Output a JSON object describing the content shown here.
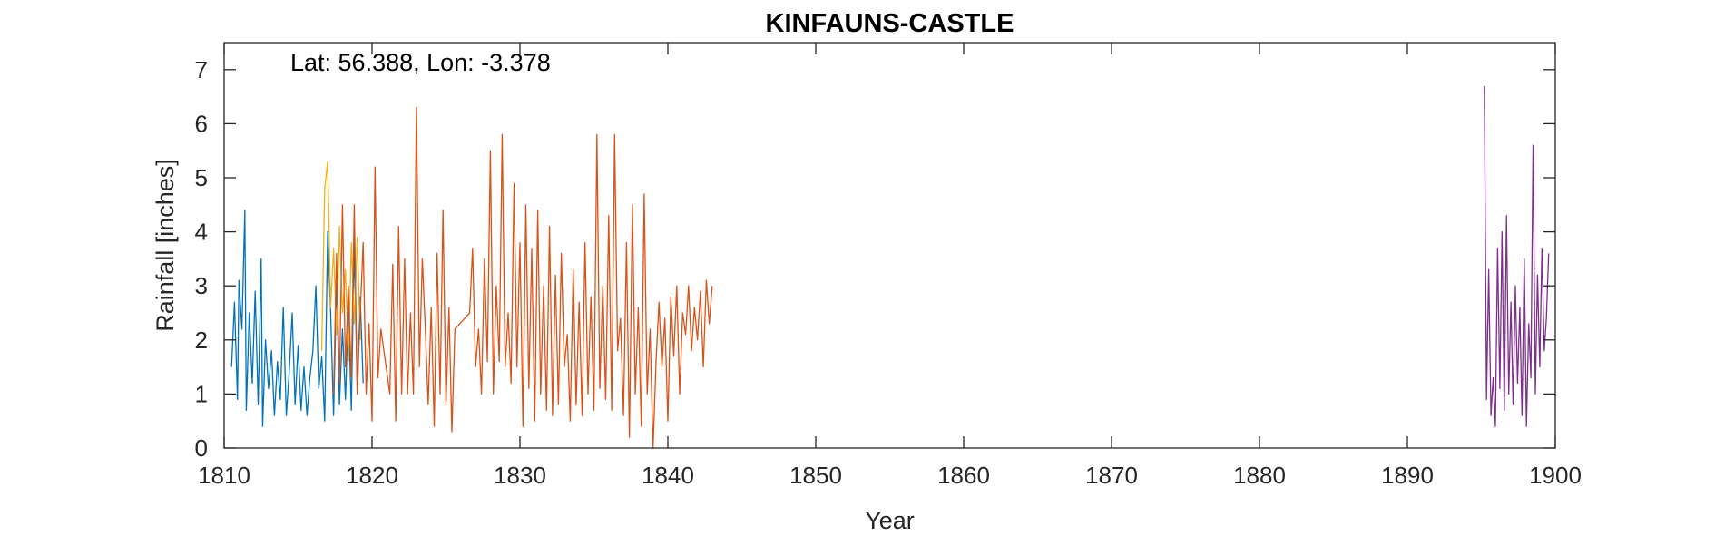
{
  "chart_data": {
    "type": "line",
    "title": "KINFAUNS-CASTLE",
    "xlabel": "Year",
    "ylabel": "Rainfall [inches]",
    "annotation": "Lat: 56.388, Lon: -3.378",
    "xlim": [
      1810,
      1900
    ],
    "ylim": [
      0,
      7.5
    ],
    "xticks": [
      1810,
      1820,
      1830,
      1840,
      1850,
      1860,
      1870,
      1880,
      1890,
      1900
    ],
    "yticks": [
      0,
      1,
      2,
      3,
      4,
      5,
      6,
      7
    ],
    "grid": false,
    "legend": "none",
    "series": [
      {
        "color": "#0072BD",
        "x": [
          1810.5,
          1810.7,
          1810.9,
          1811.0,
          1811.2,
          1811.4,
          1811.5,
          1811.7,
          1811.9,
          1812.1,
          1812.3,
          1812.5,
          1812.6,
          1812.8,
          1813.0,
          1813.2,
          1813.4,
          1813.6,
          1813.8,
          1814.0,
          1814.2,
          1814.4,
          1814.6,
          1814.8,
          1815.0,
          1815.2,
          1815.4,
          1815.6,
          1815.8,
          1816.0,
          1816.2,
          1816.4,
          1816.6,
          1816.8,
          1817.0,
          1817.2,
          1817.4,
          1817.6,
          1817.8,
          1818.0,
          1818.2,
          1818.4,
          1818.6,
          1818.8,
          1819.0,
          1819.2,
          1819.4
        ],
        "y": [
          1.5,
          2.7,
          0.9,
          3.1,
          2.2,
          4.4,
          0.7,
          2.5,
          1.2,
          2.9,
          0.8,
          3.5,
          0.4,
          2.0,
          1.1,
          1.8,
          0.6,
          1.6,
          0.9,
          2.6,
          0.6,
          1.4,
          2.5,
          0.8,
          1.9,
          0.7,
          1.5,
          0.6,
          1.3,
          1.8,
          3.0,
          1.1,
          1.7,
          0.5,
          4.0,
          2.5,
          0.6,
          3.1,
          0.8,
          2.2,
          0.9,
          2.6,
          0.7,
          3.8,
          1.0,
          2.8,
          1.2
        ]
      },
      {
        "color": "#EDB120",
        "x": [
          1816.6,
          1816.8,
          1817.0,
          1817.2,
          1817.4,
          1817.6,
          1817.8,
          1818.0,
          1818.2,
          1818.4,
          1818.6,
          1818.8,
          1819.0,
          1819.2
        ],
        "y": [
          1.8,
          4.8,
          5.3,
          2.6,
          3.7,
          2.1,
          4.1,
          2.5,
          3.3,
          1.6,
          3.8,
          2.3,
          3.9,
          2.0
        ]
      },
      {
        "color": "#D95319",
        "x": [
          1817.4,
          1817.6,
          1817.8,
          1818.0,
          1818.2,
          1818.4,
          1818.6,
          1818.8,
          1819.0,
          1819.2,
          1819.4,
          1819.6,
          1819.8,
          1820.0,
          1820.2,
          1820.4,
          1820.6,
          1821.2,
          1821.4,
          1821.6,
          1821.8,
          1822.0,
          1822.2,
          1822.4,
          1822.6,
          1822.8,
          1823.0,
          1823.2,
          1823.4,
          1823.6,
          1823.8,
          1824.0,
          1824.2,
          1824.4,
          1824.6,
          1824.8,
          1825.0,
          1825.2,
          1825.4,
          1825.6,
          1826.6,
          1826.8,
          1827.0,
          1827.2,
          1827.4,
          1827.6,
          1827.8,
          1828.0,
          1828.2,
          1828.4,
          1828.6,
          1828.8,
          1829.0,
          1829.2,
          1829.4,
          1829.6,
          1829.8,
          1830.0,
          1830.2,
          1830.4,
          1830.6,
          1830.8,
          1831.0,
          1831.2,
          1831.4,
          1831.6,
          1831.8,
          1832.0,
          1832.2,
          1832.4,
          1832.6,
          1832.8,
          1833.0,
          1833.2,
          1833.4,
          1833.6,
          1833.8,
          1834.0,
          1834.2,
          1834.4,
          1834.6,
          1834.8,
          1835.0,
          1835.2,
          1835.4,
          1835.6,
          1835.8,
          1836.0,
          1836.2,
          1836.4,
          1836.6,
          1836.8,
          1837.0,
          1837.2,
          1837.4,
          1837.6,
          1837.8,
          1838.0,
          1838.2,
          1838.4,
          1838.6,
          1838.8,
          1839.0,
          1839.2,
          1839.4,
          1839.6,
          1839.8,
          1840.0,
          1840.2,
          1840.4,
          1840.6,
          1840.8,
          1841.0,
          1841.2,
          1841.4,
          1841.6,
          1841.8,
          1842.0,
          1842.2,
          1842.4,
          1842.6,
          1842.8,
          1843.0
        ],
        "y": [
          1.0,
          3.6,
          1.2,
          4.5,
          1.5,
          3.0,
          1.3,
          4.5,
          1.0,
          2.5,
          3.8,
          1.0,
          2.3,
          0.5,
          5.2,
          1.3,
          2.2,
          1.0,
          3.4,
          0.5,
          4.1,
          1.0,
          3.5,
          1.0,
          2.5,
          1.0,
          6.3,
          1.5,
          3.5,
          2.2,
          0.8,
          2.6,
          0.4,
          3.6,
          1.0,
          4.4,
          0.8,
          2.6,
          0.3,
          2.2,
          2.5,
          3.7,
          1.5,
          2.2,
          1.0,
          3.5,
          1.6,
          5.5,
          1.0,
          3.0,
          1.6,
          5.8,
          1.5,
          2.5,
          1.2,
          4.9,
          1.5,
          3.8,
          0.4,
          4.5,
          1.1,
          3.7,
          0.5,
          4.4,
          1.0,
          3.0,
          0.7,
          4.1,
          0.6,
          3.2,
          0.8,
          3.6,
          1.5,
          2.1,
          0.5,
          3.3,
          0.8,
          2.7,
          0.6,
          3.8,
          1.0,
          2.8,
          0.7,
          5.8,
          1.1,
          3.0,
          0.9,
          4.3,
          0.7,
          5.8,
          1.8,
          2.4,
          0.6,
          3.8,
          0.2,
          4.5,
          1.0,
          2.6,
          0.4,
          4.7,
          1.0,
          2.2,
          0.0,
          1.6,
          2.7,
          1.5,
          2.4,
          0.5,
          2.8,
          1.7,
          3.0,
          1.0,
          2.5,
          2.1,
          3.0,
          1.8,
          2.6,
          2.0,
          2.9,
          1.5,
          3.1,
          2.3,
          3.0
        ]
      },
      {
        "color": "#7E2F8E",
        "x": [
          1895.2,
          1895.35,
          1895.5,
          1895.65,
          1895.8,
          1895.95,
          1896.1,
          1896.25,
          1896.4,
          1896.55,
          1896.7,
          1896.85,
          1897.0,
          1897.15,
          1897.3,
          1897.45,
          1897.6,
          1897.75,
          1897.9,
          1898.05,
          1898.2,
          1898.35,
          1898.5,
          1898.65,
          1898.8,
          1898.95,
          1899.1,
          1899.25,
          1899.4,
          1899.55
        ],
        "y": [
          6.7,
          0.9,
          3.3,
          0.6,
          1.3,
          0.4,
          3.7,
          1.1,
          4.0,
          0.7,
          4.3,
          1.0,
          2.7,
          0.8,
          3.0,
          1.2,
          2.6,
          0.6,
          3.5,
          0.4,
          2.3,
          1.3,
          5.6,
          1.0,
          3.2,
          1.5,
          3.7,
          1.8,
          2.4,
          3.6
        ]
      }
    ]
  }
}
